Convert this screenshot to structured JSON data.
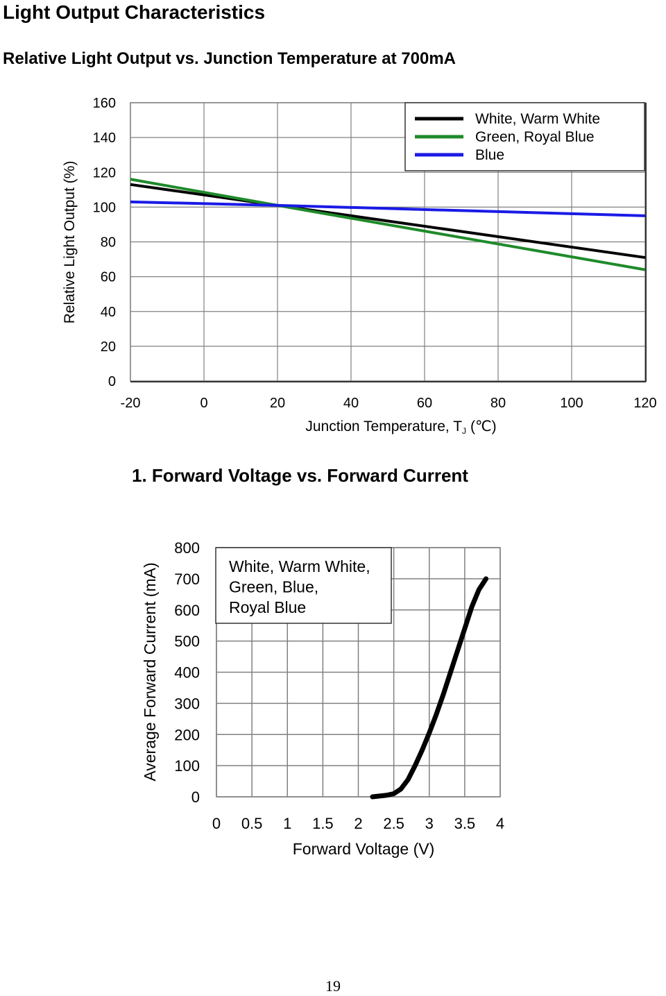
{
  "page": {
    "title": "Light Output Characteristics",
    "page_number": "19"
  },
  "colors": {
    "black_series": "#000000",
    "green_series": "#1f8a2a",
    "blue_series": "#1a1ae6",
    "grid": "#808080"
  },
  "chart_data": [
    {
      "type": "line",
      "title": "Relative Light Output vs. Junction Temperature at 700mA",
      "xlabel": "Junction Temperature, T",
      "xlabel_subscript": "J",
      "xlabel_unit": "(℃)",
      "ylabel": "Relative Light Output (%)",
      "xlim": [
        -20,
        120
      ],
      "ylim": [
        0,
        160
      ],
      "xticks": [
        -20,
        0,
        20,
        40,
        60,
        80,
        100,
        120
      ],
      "yticks": [
        0,
        20,
        40,
        60,
        80,
        100,
        120,
        140,
        160
      ],
      "grid": true,
      "legend_position": "top-right",
      "series": [
        {
          "name": "White, Warm White",
          "color": "#000000",
          "x": [
            -20,
            20,
            120
          ],
          "y": [
            113,
            101,
            71
          ]
        },
        {
          "name": "Green, Royal Blue",
          "color": "#1f8a2a",
          "x": [
            -20,
            20,
            120
          ],
          "y": [
            116,
            101,
            64
          ]
        },
        {
          "name": "Blue",
          "color": "#1a1ae6",
          "x": [
            -20,
            20,
            120
          ],
          "y": [
            103,
            101,
            95
          ]
        }
      ]
    },
    {
      "type": "line",
      "title": "1. Forward Voltage vs. Forward Current",
      "xlabel": "Forward Voltage (V)",
      "ylabel": "Average Forward Current (mA)",
      "xlim": [
        0,
        4
      ],
      "ylim": [
        0,
        800
      ],
      "xticks": [
        "0",
        "0.5",
        "1",
        "1.5",
        "2",
        "2.5",
        "3",
        "3.5",
        "4"
      ],
      "yticks": [
        0,
        100,
        200,
        300,
        400,
        500,
        600,
        700,
        800
      ],
      "grid": true,
      "legend_position": "top-left",
      "legend_lines": [
        "White, Warm White,",
        "Green, Blue,",
        "Royal Blue"
      ],
      "series": [
        {
          "name": "White, Warm White, Green, Blue, Royal Blue",
          "color": "#000000",
          "x": [
            2.2,
            2.4,
            2.5,
            2.6,
            2.7,
            2.8,
            2.9,
            3.0,
            3.1,
            3.2,
            3.3,
            3.4,
            3.5,
            3.6,
            3.7,
            3.8
          ],
          "y": [
            0,
            5,
            10,
            25,
            55,
            100,
            150,
            205,
            265,
            330,
            400,
            470,
            540,
            610,
            665,
            700
          ]
        }
      ]
    }
  ]
}
